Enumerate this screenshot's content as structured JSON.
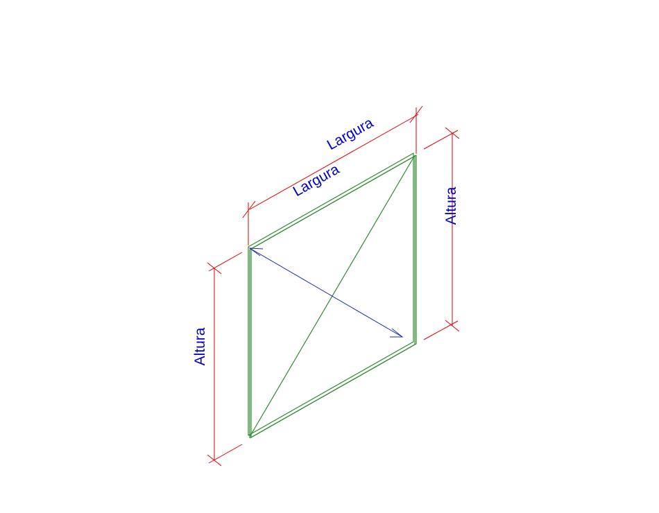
{
  "dimensions": {
    "width_top_label": "Largura",
    "width_front_label": "Largura",
    "height_right_label": "Altura",
    "height_left_label": "Altura"
  },
  "colors": {
    "panel_edge": "#2e8b2e",
    "dimension_line": "#dd0000",
    "dimension_text": "#0000cc",
    "direction_arrow": "#1a2fa8"
  }
}
